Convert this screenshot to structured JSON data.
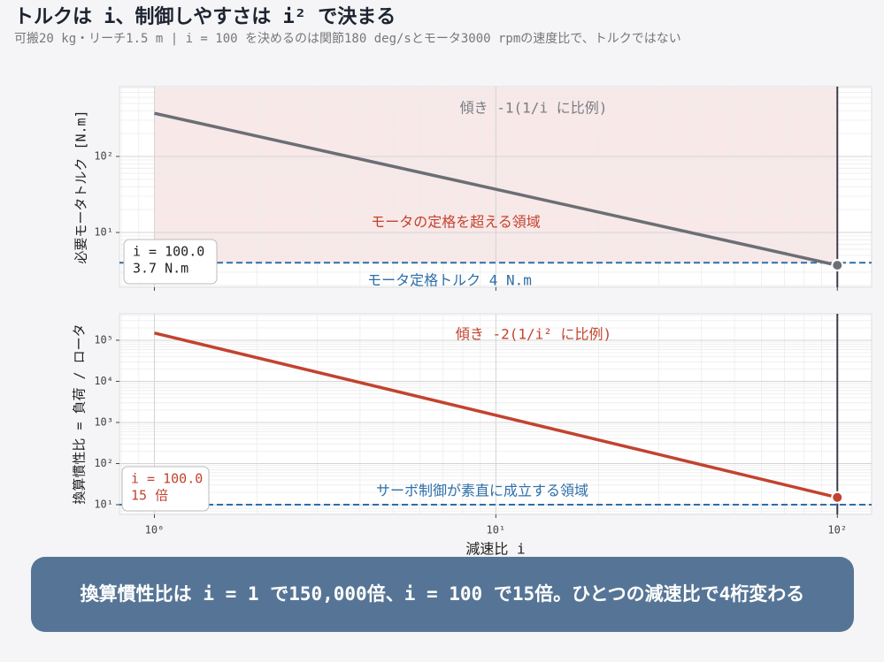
{
  "title": "トルクは i、制御しやすさは i² で決まる",
  "subtitle": "可搬20 kg・リーチ1.5 m | i = 100 を決めるのは関節180 deg/sとモータ3000 rpmの速度比で、トルクではない",
  "banner": "換算慣性比は i = 1 で150,000倍、i = 100 で15倍。ひとつの減速比で4桁変わる",
  "chart_data": [
    {
      "type": "line",
      "xlog": true,
      "ylog": true,
      "grid": true,
      "ylabel": "必要モータトルク [N.m]",
      "xlim": [
        0.79,
        126
      ],
      "ylim": [
        1.9,
        830
      ],
      "xticks": [
        1,
        10,
        100
      ],
      "yticks": [
        {
          "value": 10,
          "label": "10¹"
        },
        {
          "value": 100,
          "label": "10²"
        }
      ],
      "x": [
        1,
        100
      ],
      "series": [
        {
          "color": "#6b6e75",
          "values": [
            370,
            3.7
          ]
        }
      ],
      "marker": {
        "x": 100,
        "value": 3.7,
        "color": "#6b6e75"
      },
      "vline": {
        "value": 100,
        "color": "#3a3f4a"
      },
      "hline": {
        "value": 4,
        "label": "モータ定格トルク 4 N.m",
        "color": "#2e6fa8"
      },
      "region": {
        "label": "モータの定格を超える領域",
        "color": "#f8e8e8",
        "label_color": "#c2432f"
      },
      "annotation": {
        "text": "傾き -1(1/i に比例)",
        "color": "#7a7d84"
      },
      "readout": {
        "lines": [
          "i = 100.0",
          "3.7 N.m"
        ],
        "color": "#222222"
      }
    },
    {
      "type": "line",
      "xlog": true,
      "ylog": true,
      "grid": true,
      "ylabel": "換算慣性比 = 負荷 / ロータ",
      "xlabel": "減速比 i",
      "xlim": [
        0.79,
        126
      ],
      "ylim": [
        5.8,
        441000
      ],
      "xticks": [
        {
          "value": 1,
          "label": "10⁰"
        },
        {
          "value": 10,
          "label": "10¹"
        },
        {
          "value": 100,
          "label": "10²"
        }
      ],
      "yticks": [
        {
          "value": 10,
          "label": "10¹"
        },
        {
          "value": 100,
          "label": "10²"
        },
        {
          "value": 1000,
          "label": "10³"
        },
        {
          "value": 10000,
          "label": "10⁴"
        },
        {
          "value": 100000,
          "label": "10⁵"
        }
      ],
      "x": [
        1,
        100
      ],
      "series": [
        {
          "color": "#c2432f",
          "values": [
            150000,
            15
          ]
        }
      ],
      "marker": {
        "x": 100,
        "value": 15,
        "color": "#c2432f"
      },
      "vline": {
        "value": 100,
        "color": "#3a3f4a"
      },
      "hline": {
        "value": 10,
        "label": "サーボ制御が素直に成立する領域",
        "color": "#2e6fa8"
      },
      "annotation": {
        "text": "傾き -2(1/i² に比例)",
        "color": "#c2432f"
      },
      "readout": {
        "lines": [
          "i = 100.0",
          "15 倍"
        ],
        "color": "#c2432f"
      }
    }
  ]
}
